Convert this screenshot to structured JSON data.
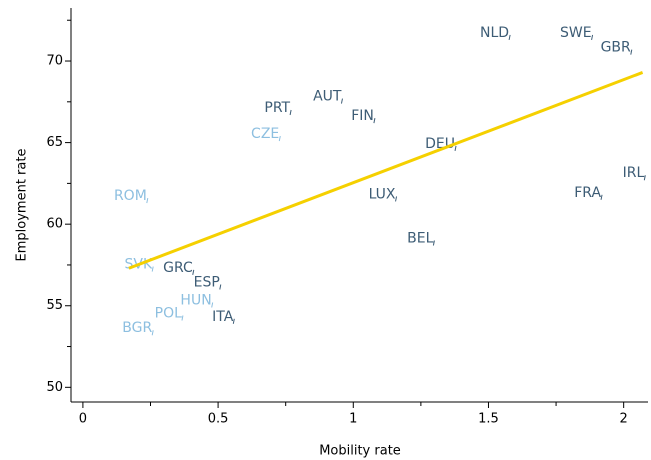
{
  "chart_data": {
    "type": "scatter",
    "x_label": "Mobility rate",
    "y_label": "Employment rate",
    "labels": [
      "NLD",
      "SWE",
      "GBR",
      "IRL",
      "FRA",
      "PRT",
      "AUT",
      "FIN",
      "CZE",
      "DEU",
      "LUX",
      "ROM",
      "BEL",
      "SVK",
      "GRC",
      "ESP",
      "HUN",
      "POL",
      "ITA",
      "BGR"
    ],
    "x": [
      1.58,
      1.885,
      2.03,
      2.08,
      1.92,
      0.77,
      0.96,
      1.08,
      0.73,
      1.38,
      1.16,
      0.24,
      1.3,
      0.26,
      0.41,
      0.51,
      0.48,
      0.37,
      0.56,
      0.26
    ],
    "values": [
      71.6,
      71.6,
      70.7,
      63.0,
      61.8,
      67.0,
      67.7,
      66.5,
      65.4,
      64.8,
      61.7,
      61.6,
      59.0,
      57.4,
      57.2,
      56.3,
      55.2,
      54.4,
      54.2,
      53.5
    ],
    "colors": [
      "#3d5c75",
      "#3d5c75",
      "#3d5c75",
      "#3d5c75",
      "#3d5c75",
      "#3d5c75",
      "#3d5c75",
      "#3d5c75",
      "#8dbfe0",
      "#3d5c75",
      "#3d5c75",
      "#8dbfe0",
      "#3d5c75",
      "#8dbfe0",
      "#3d5c75",
      "#3d5c75",
      "#8dbfe0",
      "#8dbfe0",
      "#3d5c75",
      "#8dbfe0"
    ],
    "fit_line": {
      "x": [
        0.17,
        2.07
      ],
      "y": [
        57.3,
        69.3
      ],
      "color": "#f5d000"
    },
    "xlim": [
      -0.044,
      2.09
    ],
    "ylim": [
      49.1,
      73.25
    ],
    "xticks": [
      0,
      0.5,
      1.0,
      1.5,
      2.0
    ],
    "yticks": [
      50,
      55,
      60,
      65,
      70
    ],
    "xminor_ticks": [
      0.25,
      0.75,
      1.25,
      1.75
    ],
    "yminor_ticks": [
      52.5,
      57.5,
      62.5,
      67.5,
      72.5
    ]
  }
}
